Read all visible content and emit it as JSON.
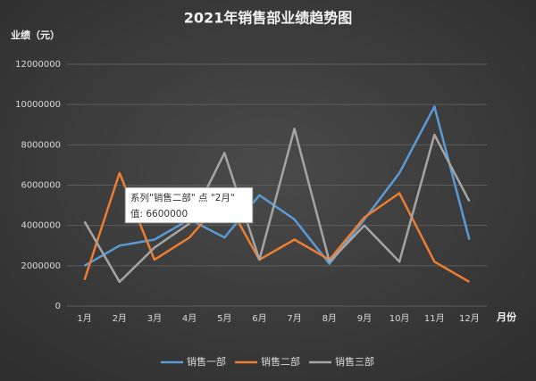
{
  "chart_data": {
    "type": "line",
    "title": "2021年销售部业绩趋势图",
    "y_label": "业绩（元）",
    "x_label": "月份",
    "categories": [
      "1月",
      "2月",
      "3月",
      "4月",
      "5月",
      "6月",
      "7月",
      "8月",
      "9月",
      "10月",
      "11月",
      "12月"
    ],
    "series": [
      {
        "name": "销售一部",
        "color": "#5b9bd5",
        "values": [
          2000000,
          3000000,
          3300000,
          4300000,
          3400000,
          5500000,
          4300000,
          2100000,
          4300000,
          6600000,
          9900000,
          3300000
        ]
      },
      {
        "name": "销售二部",
        "color": "#ed7d31",
        "values": [
          1300000,
          6600000,
          2300000,
          3400000,
          5400000,
          2300000,
          3300000,
          2300000,
          4400000,
          5600000,
          2200000,
          1200000
        ]
      },
      {
        "name": "销售三部",
        "color": "#a5a5a5",
        "values": [
          4200000,
          1200000,
          2900000,
          4100000,
          7600000,
          2300000,
          8800000,
          2200000,
          4000000,
          2200000,
          8500000,
          5200000
        ]
      }
    ],
    "ylim": [
      0,
      12000000
    ],
    "yticks": [
      0,
      2000000,
      4000000,
      6000000,
      8000000,
      10000000,
      12000000
    ],
    "grid": true,
    "legend": "bottom",
    "tooltip": {
      "line1": "系列\"销售二部\" 点 \"2月\"",
      "line2": "值: 6600000"
    }
  }
}
